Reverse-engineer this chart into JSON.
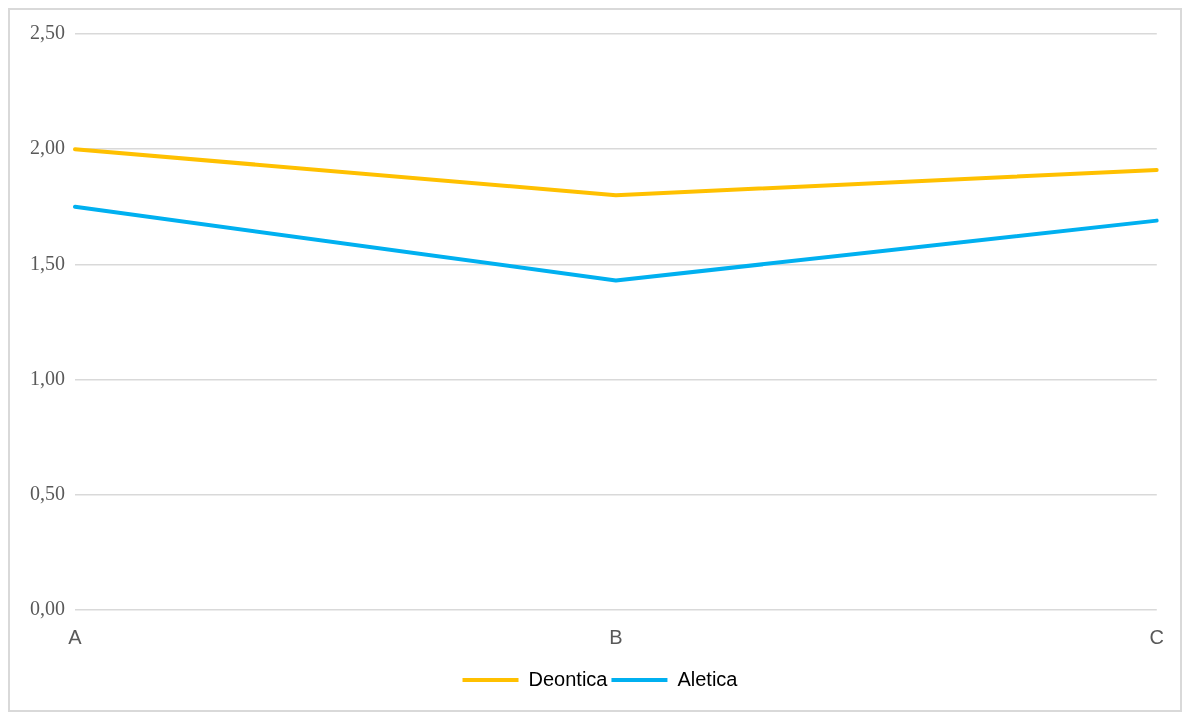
{
  "chart_data": {
    "type": "line",
    "categories": [
      "A",
      "B",
      "C"
    ],
    "series": [
      {
        "name": "Deontica",
        "color": "#ffc000",
        "values": [
          2.0,
          1.8,
          1.91
        ]
      },
      {
        "name": "Aletica",
        "color": "#00b0f0",
        "values": [
          1.75,
          1.43,
          1.69
        ]
      }
    ],
    "ylim": [
      0,
      2.5
    ],
    "yticks": [
      {
        "value": 0,
        "label": "0,00"
      },
      {
        "value": 0.5,
        "label": "0,50"
      },
      {
        "value": 1,
        "label": "1,00"
      },
      {
        "value": 1.5,
        "label": "1,50"
      },
      {
        "value": 2,
        "label": "2,00"
      },
      {
        "value": 2.5,
        "label": "2,50"
      }
    ],
    "grid": "y",
    "legend": "bottom",
    "marker": "none",
    "line_style": "solid"
  }
}
